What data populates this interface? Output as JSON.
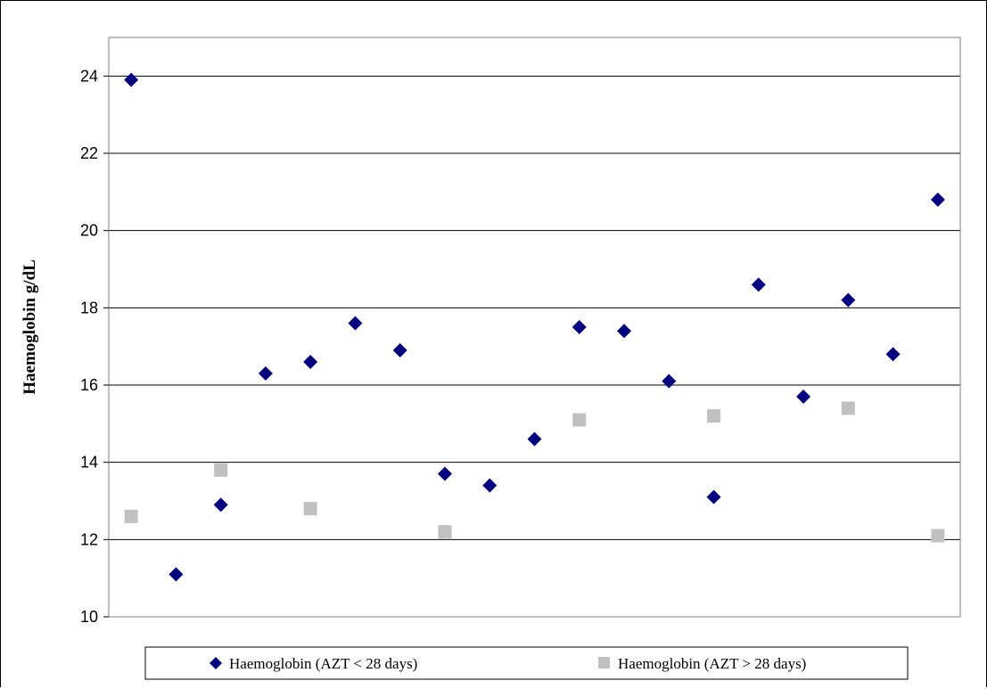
{
  "chart_data": {
    "type": "scatter",
    "title": "",
    "xlabel": "",
    "ylabel": "Haemoglobin g/dL",
    "ylim": [
      10,
      25
    ],
    "yticks": [
      "10",
      "12",
      "14",
      "16",
      "18",
      "20",
      "22",
      "24"
    ],
    "xlim": [
      0.5,
      19.5
    ],
    "grid": "horizontal",
    "legend_position": "bottom",
    "series": [
      {
        "name": "Haemoglobin (AZT < 28 days)",
        "marker": "diamond",
        "color": "#000080",
        "x": [
          1,
          2,
          3,
          4,
          5,
          6,
          7,
          8,
          9,
          10,
          11,
          12,
          13,
          14,
          15,
          16,
          17,
          18,
          19
        ],
        "values": [
          23.9,
          11.1,
          12.9,
          16.3,
          16.6,
          17.6,
          16.9,
          13.7,
          13.4,
          14.6,
          17.5,
          17.4,
          16.1,
          13.1,
          18.6,
          15.7,
          18.2,
          16.8,
          20.8
        ]
      },
      {
        "name": "Haemoglobin (AZT > 28 days)",
        "marker": "square",
        "color": "#c0c0c0",
        "x": [
          1,
          3,
          5,
          8,
          11,
          14,
          17,
          19
        ],
        "values": [
          12.6,
          13.8,
          12.8,
          12.2,
          15.1,
          15.2,
          15.4,
          12.1
        ]
      }
    ]
  }
}
